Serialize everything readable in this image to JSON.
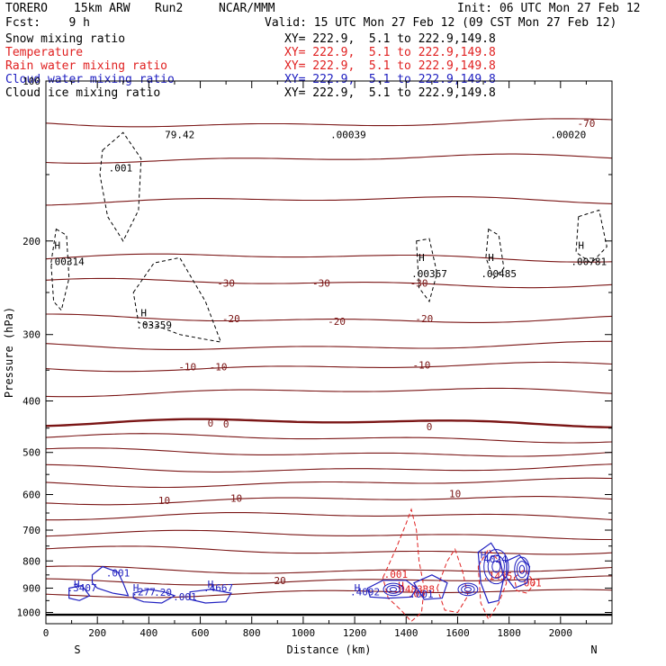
{
  "header": {
    "model": "TORERO",
    "resolution": "15km ARW",
    "run": "Run2",
    "org": "NCAR/MMM",
    "init": "Init: 06 UTC Mon 27 Feb 12",
    "fcst": "Fcst:    9 h",
    "valid": "Valid: 15 UTC Mon 27 Feb 12 (09 CST Mon 27 Feb 12)"
  },
  "legend": [
    {
      "name": "Snow mixing ratio",
      "xy": "XY= 222.9,  5.1 to 222.9,149.8",
      "color": "#000000"
    },
    {
      "name": "Temperature",
      "xy": "XY= 222.9,  5.1 to 222.9,149.8",
      "color": "#e02020"
    },
    {
      "name": "Rain water mixing ratio",
      "xy": "XY= 222.9,  5.1 to 222.9,149.8",
      "color": "#e02020"
    },
    {
      "name": "Cloud water mixing ratio",
      "xy": "XY= 222.9,  5.1 to 222.9,149.8",
      "color": "#2020c0"
    },
    {
      "name": "Cloud ice mixing ratio",
      "xy": "XY= 222.9,  5.1 to 222.9,149.8",
      "color": "#000000"
    }
  ],
  "chart_data": {
    "type": "line",
    "xlabel": "Distance (km)",
    "ylabel": "Pressure (hPa)",
    "xlim": [
      0,
      2200
    ],
    "ylim": [
      1050,
      100
    ],
    "y_scale": "log",
    "x_ticks": [
      0,
      200,
      400,
      600,
      800,
      1000,
      1200,
      1400,
      1600,
      1800,
      2000
    ],
    "y_ticks": [
      100,
      200,
      300,
      400,
      500,
      600,
      700,
      800,
      900,
      1000
    ],
    "left_end_label": "S",
    "right_end_label": "N",
    "temperature_isotherms": {
      "color": "#7a1515",
      "levels_drawn": [
        {
          "value": -70,
          "p": 120
        },
        {
          "value": -60,
          "p": 140
        },
        {
          "value": -50,
          "p": 168
        },
        {
          "value": -40,
          "p": 215
        },
        {
          "value": -30,
          "p": 240
        },
        {
          "value": -20,
          "p": 280
        },
        {
          "value": -15,
          "p": 315
        },
        {
          "value": -10,
          "p": 345
        },
        {
          "value": -5,
          "p": 385
        },
        {
          "value": 0,
          "p": 440
        },
        {
          "value": 2,
          "p": 470
        },
        {
          "value": 4,
          "p": 500
        },
        {
          "value": 6,
          "p": 535
        },
        {
          "value": 8,
          "p": 570
        },
        {
          "value": 10,
          "p": 615
        },
        {
          "value": 12,
          "p": 660
        },
        {
          "value": 14,
          "p": 715
        },
        {
          "value": 16,
          "p": 765
        },
        {
          "value": 18,
          "p": 830
        },
        {
          "value": 20,
          "p": 870
        },
        {
          "value": 22,
          "p": 920
        }
      ],
      "labels": [
        {
          "text": "-70",
          "x": 2100,
          "p": 120
        },
        {
          "text": "-30",
          "x": 700,
          "p": 240
        },
        {
          "text": "-30",
          "x": 1070,
          "p": 240
        },
        {
          "text": "-30",
          "x": 1450,
          "p": 240
        },
        {
          "text": "-20",
          "x": 720,
          "p": 280
        },
        {
          "text": "-20",
          "x": 1130,
          "p": 283
        },
        {
          "text": "-20",
          "x": 1470,
          "p": 280
        },
        {
          "text": "-10",
          "x": 550,
          "p": 345
        },
        {
          "text": "-10",
          "x": 670,
          "p": 345
        },
        {
          "text": "-10",
          "x": 1460,
          "p": 342
        },
        {
          "text": "0",
          "x": 640,
          "p": 440
        },
        {
          "text": "0",
          "x": 700,
          "p": 442
        },
        {
          "text": "0",
          "x": 1490,
          "p": 447
        },
        {
          "text": "10",
          "x": 460,
          "p": 615
        },
        {
          "text": "10",
          "x": 740,
          "p": 610
        },
        {
          "text": "10",
          "x": 1590,
          "p": 598
        },
        {
          "text": "20",
          "x": 910,
          "p": 870
        }
      ]
    },
    "snow_mixing_ratio": {
      "color": "#000000",
      "labels": [
        {
          "text": "H",
          "x": 45,
          "p": 207,
          "marker": true
        },
        {
          "text": ".00314",
          "x": 80,
          "p": 222
        },
        {
          "text": "H",
          "x": 380,
          "p": 277,
          "marker": true
        },
        {
          "text": ".03359",
          "x": 420,
          "p": 292
        },
        {
          "text": ".001",
          "x": 290,
          "p": 148
        },
        {
          "text": "H",
          "x": 1460,
          "p": 218,
          "marker": true
        },
        {
          "text": ".00367",
          "x": 1490,
          "p": 234
        },
        {
          "text": "H",
          "x": 1730,
          "p": 218,
          "marker": true
        },
        {
          "text": ".00485",
          "x": 1760,
          "p": 234
        },
        {
          "text": "H",
          "x": 2080,
          "p": 207,
          "marker": true
        },
        {
          "text": ".00781",
          "x": 2110,
          "p": 222
        }
      ]
    },
    "cloud_ice_labels": [
      {
        "text": "79.42",
        "x": 520,
        "p": 128
      },
      {
        "text": ".00039",
        "x": 1175,
        "p": 128
      },
      {
        "text": ".00020",
        "x": 2030,
        "p": 128
      }
    ],
    "rain_water_mixing_ratio": {
      "color": "#e02020",
      "labels": [
        {
          "text": ".001",
          "x": 1360,
          "p": 860
        },
        {
          "text": "H",
          "x": 1380,
          "p": 903,
          "marker": true
        },
        {
          "text": ".048338",
          "x": 1430,
          "p": 918
        },
        {
          "text": ".05",
          "x": 1440,
          "p": 935
        },
        {
          "text": ".1435",
          "x": 1755,
          "p": 868
        },
        {
          "text": ".001",
          "x": 1880,
          "p": 893
        }
      ]
    },
    "cloud_water_mixing_ratio": {
      "color": "#2020c0",
      "labels": [
        {
          "text": "H",
          "x": 120,
          "p": 898,
          "marker": true
        },
        {
          "text": ".3407",
          "x": 140,
          "p": 913
        },
        {
          "text": ".001",
          "x": 280,
          "p": 856
        },
        {
          "text": "H",
          "x": 350,
          "p": 913,
          "marker": true
        },
        {
          "text": ".277",
          "x": 380,
          "p": 928
        },
        {
          "text": ".20",
          "x": 455,
          "p": 930
        },
        {
          "text": ".001",
          "x": 540,
          "p": 948
        },
        {
          "text": "H",
          "x": 640,
          "p": 898,
          "marker": true
        },
        {
          "text": ".4667",
          "x": 670,
          "p": 913
        },
        {
          "text": "H",
          "x": 1210,
          "p": 913,
          "marker": true
        },
        {
          "text": ".4092",
          "x": 1240,
          "p": 928
        },
        {
          "text": ".001",
          "x": 1460,
          "p": 938
        },
        {
          "text": "H",
          "x": 1700,
          "p": 792,
          "marker": true
        },
        {
          "text": ".4024",
          "x": 1735,
          "p": 806
        }
      ]
    },
    "ground_line_p": 1010
  }
}
